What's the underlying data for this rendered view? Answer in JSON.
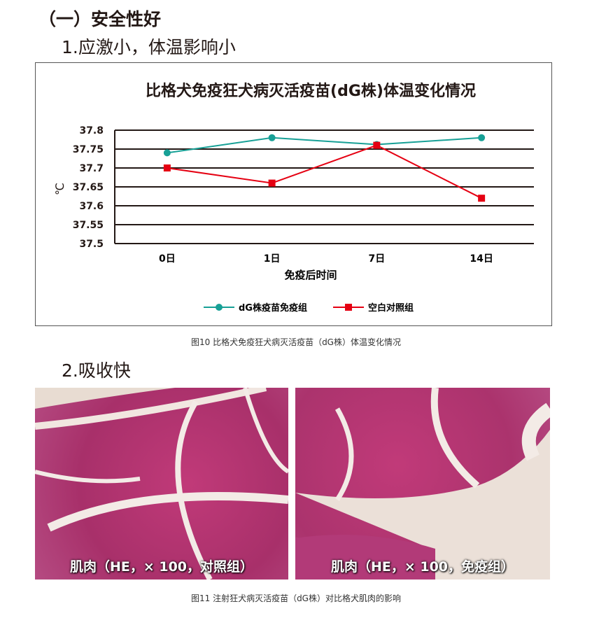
{
  "heading": "（一）安全性好",
  "section1": "1.应激小，体温影响小",
  "section2": "2.吸收快",
  "figure10_caption": "图10 比格犬免疫狂犬病灭活疫苗（dG株）体温变化情况",
  "figure11_caption": "图11 注射狂犬病灭活疫苗（dG株）对比格犬肌肉的影响",
  "images": [
    {
      "label": "肌肉（HE，× 100，对照组）"
    },
    {
      "label": "肌肉（HE，× 100，免疫组）"
    }
  ],
  "chart_data": {
    "type": "line",
    "title": "比格犬免疫狂犬病灭活疫苗(dG株)体温变化情况",
    "xlabel": "免疫后时间",
    "ylabel": "℃",
    "categories": [
      "0日",
      "1日",
      "7日",
      "14日"
    ],
    "ylim": [
      37.5,
      37.8
    ],
    "yticks": [
      "37.8",
      "37.75",
      "37.7",
      "37.65",
      "37.6",
      "37.55",
      "37.5"
    ],
    "grid": true,
    "legend_position": "bottom",
    "series": [
      {
        "name": "dG株疫苗免疫组",
        "values": [
          37.74,
          37.78,
          37.762,
          37.78
        ],
        "color": "#17a096",
        "marker": "circle"
      },
      {
        "name": "空白对照组",
        "values": [
          37.7,
          37.66,
          37.76,
          37.62
        ],
        "color": "#e50012",
        "marker": "square"
      }
    ]
  }
}
